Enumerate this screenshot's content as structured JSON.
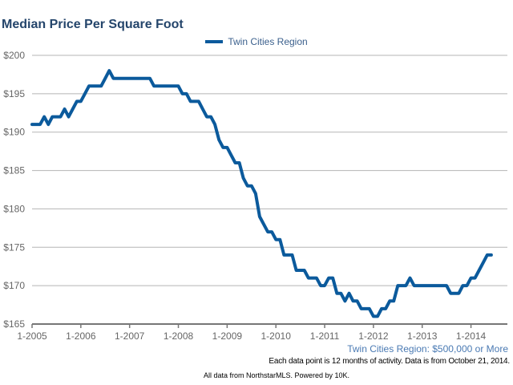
{
  "chart_data": {
    "type": "line",
    "title": "Median Price Per Square Foot",
    "subtitle": "Twin Cities Region: $500,000 or More",
    "note": "Each data point is 12 months of activity. Data is from October 21, 2014.",
    "source": "All data from NorthstarMLS. Powered by 10K.",
    "xlabel": "",
    "ylabel": "",
    "ylim": [
      165,
      200
    ],
    "y_ticks": [
      "$165",
      "$170",
      "$175",
      "$180",
      "$185",
      "$190",
      "$195",
      "$200"
    ],
    "y_tick_values": [
      165,
      170,
      175,
      180,
      185,
      190,
      195,
      200
    ],
    "x_ticks": [
      "1-2005",
      "1-2006",
      "1-2007",
      "1-2008",
      "1-2009",
      "1-2010",
      "1-2011",
      "1-2012",
      "1-2013",
      "1-2014"
    ],
    "grid": true,
    "legend": "top-center",
    "color": "#0b5a9c",
    "x": [
      "1-2005",
      "2-2005",
      "3-2005",
      "4-2005",
      "5-2005",
      "6-2005",
      "7-2005",
      "8-2005",
      "9-2005",
      "10-2005",
      "11-2005",
      "12-2005",
      "1-2006",
      "2-2006",
      "3-2006",
      "4-2006",
      "5-2006",
      "6-2006",
      "7-2006",
      "8-2006",
      "9-2006",
      "10-2006",
      "11-2006",
      "12-2006",
      "1-2007",
      "2-2007",
      "3-2007",
      "4-2007",
      "5-2007",
      "6-2007",
      "7-2007",
      "8-2007",
      "9-2007",
      "10-2007",
      "11-2007",
      "12-2007",
      "1-2008",
      "2-2008",
      "3-2008",
      "4-2008",
      "5-2008",
      "6-2008",
      "7-2008",
      "8-2008",
      "9-2008",
      "10-2008",
      "11-2008",
      "12-2008",
      "1-2009",
      "2-2009",
      "3-2009",
      "4-2009",
      "5-2009",
      "6-2009",
      "7-2009",
      "8-2009",
      "9-2009",
      "10-2009",
      "11-2009",
      "12-2009",
      "1-2010",
      "2-2010",
      "3-2010",
      "4-2010",
      "5-2010",
      "6-2010",
      "7-2010",
      "8-2010",
      "9-2010",
      "10-2010",
      "11-2010",
      "12-2010",
      "1-2011",
      "2-2011",
      "3-2011",
      "4-2011",
      "5-2011",
      "6-2011",
      "7-2011",
      "8-2011",
      "9-2011",
      "10-2011",
      "11-2011",
      "12-2011",
      "1-2012",
      "2-2012",
      "3-2012",
      "4-2012",
      "5-2012",
      "6-2012",
      "7-2012",
      "8-2012",
      "9-2012",
      "10-2012",
      "11-2012",
      "12-2012",
      "1-2013",
      "2-2013",
      "3-2013",
      "4-2013",
      "5-2013",
      "6-2013",
      "7-2013",
      "8-2013",
      "9-2013",
      "10-2013",
      "11-2013",
      "12-2013",
      "1-2014",
      "2-2014",
      "3-2014",
      "4-2014",
      "5-2014",
      "6-2014"
    ],
    "series": [
      {
        "name": "Twin Cities Region",
        "values": [
          191,
          191,
          191,
          192,
          191,
          192,
          192,
          192,
          193,
          192,
          193,
          194,
          194,
          195,
          196,
          196,
          196,
          196,
          197,
          198,
          197,
          197,
          197,
          197,
          197,
          197,
          197,
          197,
          197,
          197,
          196,
          196,
          196,
          196,
          196,
          196,
          196,
          195,
          195,
          194,
          194,
          194,
          193,
          192,
          192,
          191,
          189,
          188,
          188,
          187,
          186,
          186,
          184,
          183,
          183,
          182,
          179,
          178,
          177,
          177,
          176,
          176,
          174,
          174,
          174,
          172,
          172,
          172,
          171,
          171,
          171,
          170,
          170,
          171,
          171,
          169,
          169,
          168,
          169,
          168,
          168,
          167,
          167,
          167,
          166,
          166,
          167,
          167,
          168,
          168,
          170,
          170,
          170,
          171,
          170,
          170,
          170,
          170,
          170,
          170,
          170,
          170,
          170,
          169,
          169,
          169,
          170,
          170,
          171,
          171,
          172,
          173,
          174,
          174
        ]
      }
    ]
  }
}
